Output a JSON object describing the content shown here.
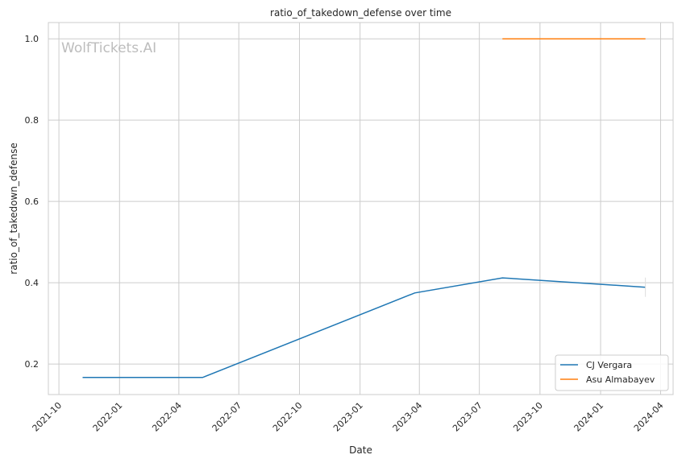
{
  "chart_data": {
    "type": "line",
    "title": "ratio_of_takedown_defense over time",
    "xlabel": "Date",
    "ylabel": "ratio_of_takedown_defense",
    "watermark": "WolfTickets.AI",
    "grid": true,
    "legend_position": "bottom-right",
    "x_ticks": [
      "2021-10",
      "2022-01",
      "2022-04",
      "2022-07",
      "2022-10",
      "2023-01",
      "2023-04",
      "2023-07",
      "2023-10",
      "2024-01",
      "2024-04"
    ],
    "y_ticks": [
      "0.2",
      "0.4",
      "0.6",
      "0.8",
      "1.0"
    ],
    "ylim": [
      0.125,
      1.04
    ],
    "xlim": [
      "2021-09-15",
      "2024-04-20"
    ],
    "series": [
      {
        "name": "CJ Vergara",
        "color": "#1f77b4",
        "points": [
          {
            "x": "2021-11-06",
            "y": 0.167
          },
          {
            "x": "2022-05-07",
            "y": 0.167
          },
          {
            "x": "2023-03-25",
            "y": 0.375
          },
          {
            "x": "2023-08-05",
            "y": 0.412
          },
          {
            "x": "2024-03-09",
            "y": 0.389
          }
        ]
      },
      {
        "name": "Asu Almabayev",
        "color": "#ff7f0e",
        "points": [
          {
            "x": "2023-08-05",
            "y": 1.0
          },
          {
            "x": "2024-03-09",
            "y": 1.0
          }
        ]
      }
    ]
  }
}
